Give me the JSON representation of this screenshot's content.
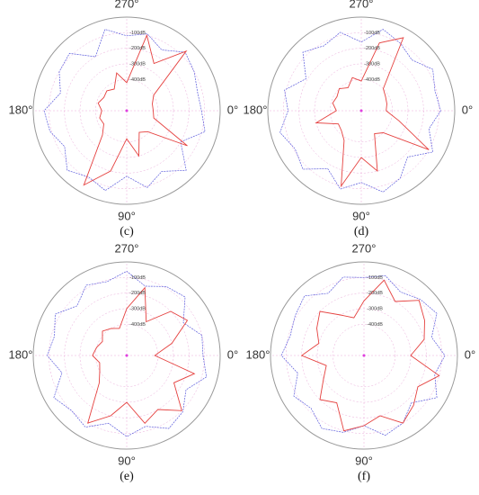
{
  "chart_data": [
    {
      "type": "polar",
      "label": "(c)",
      "x": [
        0,
        15,
        30,
        45,
        60,
        75,
        90,
        105,
        120,
        135,
        150,
        165,
        180,
        195,
        210,
        225,
        240,
        255,
        270,
        285,
        300,
        315,
        330,
        345
      ],
      "rlim": [
        -600,
        0
      ],
      "rticks": [
        {
          "value": -100,
          "label": "-100dB"
        },
        {
          "value": -200,
          "label": "-200dB"
        },
        {
          "value": -300,
          "label": "-300dB"
        },
        {
          "value": -400,
          "label": "-400dB"
        }
      ],
      "angle_ticks": [
        {
          "value": 0,
          "label": "0°"
        },
        {
          "value": 90,
          "label": "90°"
        },
        {
          "value": 180,
          "label": "180°"
        },
        {
          "value": 270,
          "label": "270°"
        }
      ],
      "grid": true,
      "series": [
        {
          "color": "#5b5bdc",
          "dashed": true,
          "values": [
            -120,
            -80,
            -200,
            -60,
            -150,
            -90,
            -180,
            -70,
            -110,
            -60,
            -140,
            -90,
            -70,
            -160,
            -100,
            -80,
            -200,
            -60,
            -120,
            -90,
            -150,
            -70,
            -100,
            -130
          ]
        },
        {
          "color": "#e5413f",
          "dashed": false,
          "values": [
            -430,
            -420,
            -150,
            -410,
            -440,
            -300,
            -420,
            -200,
            -50,
            -380,
            -430,
            -420,
            -440,
            -410,
            -430,
            -420,
            -440,
            -350,
            -420,
            -100,
            -250,
            -60,
            -400,
            -430
          ]
        }
      ]
    },
    {
      "type": "polar",
      "label": "(d)",
      "x": [
        0,
        15,
        30,
        45,
        60,
        75,
        90,
        105,
        120,
        135,
        150,
        165,
        180,
        195,
        210,
        225,
        240,
        255,
        270,
        285,
        300,
        315,
        330,
        345
      ],
      "rlim": [
        -600,
        0
      ],
      "rticks": [
        {
          "value": -100,
          "label": "-100dB"
        },
        {
          "value": -200,
          "label": "-200dB"
        },
        {
          "value": -300,
          "label": "-300dB"
        },
        {
          "value": -400,
          "label": "-400dB"
        }
      ],
      "angle_ticks": [
        {
          "value": 0,
          "label": "0°"
        },
        {
          "value": 90,
          "label": "90°"
        },
        {
          "value": 180,
          "label": "180°"
        },
        {
          "value": 270,
          "label": "270°"
        }
      ],
      "grid": true,
      "series": [
        {
          "color": "#5b5bdc",
          "dashed": true,
          "values": [
            -90,
            -150,
            -70,
            -180,
            -100,
            -60,
            -140,
            -80,
            -170,
            -70,
            -110,
            -60,
            -130,
            -90,
            -190,
            -70,
            -120,
            -80,
            -160,
            -60,
            -100,
            -140,
            -70,
            -110
          ]
        },
        {
          "color": "#e5413f",
          "dashed": false,
          "values": [
            -440,
            -350,
            -100,
            -400,
            -430,
            -200,
            -300,
            -100,
            -380,
            -420,
            -430,
            -300,
            -440,
            -410,
            -420,
            -400,
            -430,
            -380,
            -410,
            -150,
            -60,
            -400,
            -420,
            -430
          ]
        }
      ]
    },
    {
      "type": "polar",
      "label": "(e)",
      "x": [
        0,
        15,
        30,
        45,
        60,
        75,
        90,
        105,
        120,
        135,
        150,
        165,
        180,
        195,
        210,
        225,
        240,
        255,
        270,
        285,
        300,
        315,
        330,
        345
      ],
      "rlim": [
        -600,
        0
      ],
      "rticks": [
        {
          "value": -100,
          "label": "-100dB"
        },
        {
          "value": -200,
          "label": "-200dB"
        },
        {
          "value": -300,
          "label": "-300dB"
        },
        {
          "value": -400,
          "label": "-400dB"
        }
      ],
      "angle_ticks": [
        {
          "value": 0,
          "label": "0°"
        },
        {
          "value": 90,
          "label": "90°"
        },
        {
          "value": 180,
          "label": "180°"
        },
        {
          "value": 270,
          "label": "270°"
        }
      ],
      "grid": true,
      "series": [
        {
          "color": "#5b5bdc",
          "dashed": true,
          "values": [
            -110,
            -70,
            -160,
            -90,
            -60,
            -130,
            -80,
            -150,
            -70,
            -100,
            -60,
            -170,
            -90,
            -120,
            -70,
            -150,
            -80,
            -110,
            -60,
            -140,
            -90,
            -70,
            -180,
            -100
          ]
        },
        {
          "color": "#e5413f",
          "dashed": false,
          "values": [
            -420,
            -150,
            -250,
            -100,
            -200,
            -150,
            -300,
            -200,
            -100,
            -350,
            -400,
            -420,
            -380,
            -400,
            -420,
            -380,
            -400,
            -420,
            -300,
            -150,
            -350,
            -200,
            -150,
            -300
          ]
        }
      ]
    },
    {
      "type": "polar",
      "label": "(f)",
      "x": [
        0,
        15,
        30,
        45,
        60,
        75,
        90,
        105,
        120,
        135,
        150,
        165,
        180,
        195,
        210,
        225,
        240,
        255,
        270,
        285,
        300,
        315,
        330,
        345
      ],
      "rlim": [
        -600,
        0
      ],
      "rticks": [
        {
          "value": -100,
          "label": "-100dB"
        },
        {
          "value": -200,
          "label": "-200dB"
        },
        {
          "value": -300,
          "label": "-300dB"
        },
        {
          "value": -400,
          "label": "-400dB"
        }
      ],
      "angle_ticks": [
        {
          "value": 0,
          "label": "0°"
        },
        {
          "value": 90,
          "label": "90°"
        },
        {
          "value": 180,
          "label": "180°"
        },
        {
          "value": 270,
          "label": "270°"
        }
      ],
      "grid": true,
      "series": [
        {
          "color": "#5b5bdc",
          "dashed": true,
          "values": [
            -80,
            -130,
            -60,
            -170,
            -100,
            -70,
            -150,
            -90,
            -60,
            -120,
            -80,
            -160,
            -70,
            -110,
            -90,
            -60,
            -140,
            -80,
            -100,
            -70,
            -130,
            -90,
            -60,
            -150
          ]
        },
        {
          "color": "#e5413f",
          "dashed": false,
          "values": [
            -300,
            -100,
            -200,
            -150,
            -100,
            -200,
            -150,
            -100,
            -250,
            -200,
            -300,
            -350,
            -200,
            -300,
            -250,
            -200,
            -300,
            -350,
            -250,
            -100,
            -200,
            -100,
            -150,
            -200
          ]
        }
      ]
    }
  ]
}
